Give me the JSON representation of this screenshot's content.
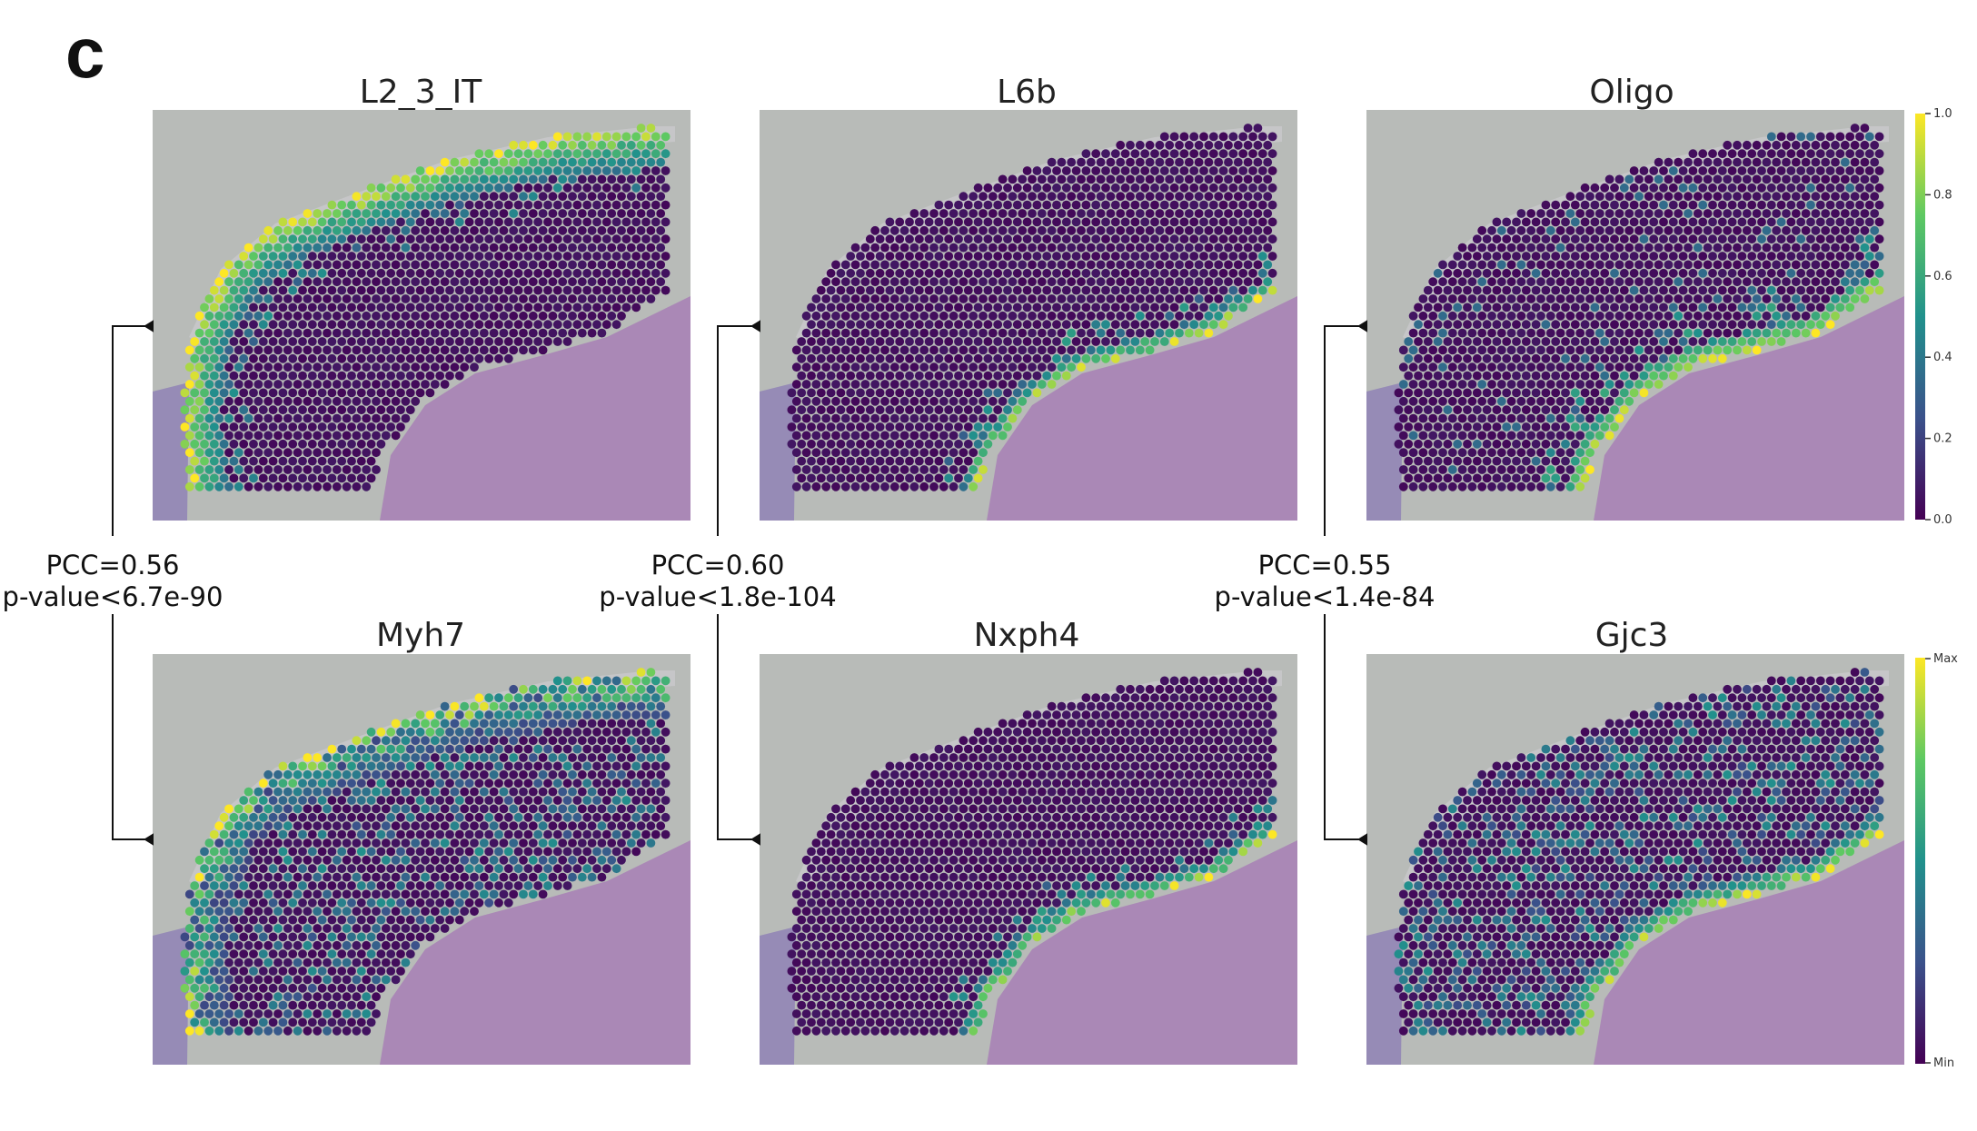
{
  "figure": {
    "panel_letter": "c",
    "top_row": [
      {
        "title": "L2_3_IT",
        "pattern": "upper_band"
      },
      {
        "title": "L6b",
        "pattern": "inner_arc"
      },
      {
        "title": "Oligo",
        "pattern": "inner_arc_strong"
      }
    ],
    "bottom_row": [
      {
        "title": "Myh7",
        "pattern": "upper_band_diffuse"
      },
      {
        "title": "Nxph4",
        "pattern": "inner_arc"
      },
      {
        "title": "Gjc3",
        "pattern": "inner_arc_diffuse"
      }
    ],
    "correlations": [
      {
        "pcc": "PCC=0.56",
        "pvalue": "p-value<6.7e-90"
      },
      {
        "pcc": "PCC=0.60",
        "pvalue": "p-value<1.8e-104"
      },
      {
        "pcc": "PCC=0.55",
        "pvalue": "p-value<1.4e-84"
      }
    ],
    "colorbar_top": {
      "ticks": [
        "1.0",
        "0.8",
        "0.6",
        "0.4",
        "0.2",
        "0.0"
      ]
    },
    "colorbar_bottom": {
      "max_label": "Max",
      "min_label": "Min"
    },
    "colors": {
      "background_tissue": "#b8bbb8",
      "he_stain": "#a883b6",
      "viridis_low": "#440154",
      "viridis_high": "#fde725"
    }
  }
}
